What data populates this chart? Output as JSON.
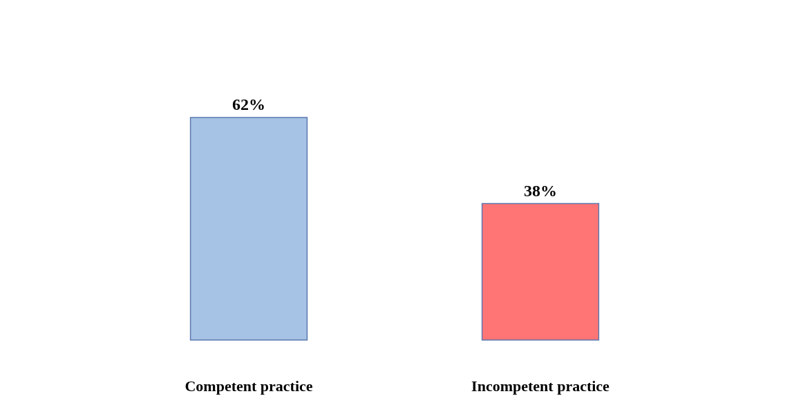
{
  "chart_data": {
    "type": "bar",
    "categories": [
      "Competent practice",
      "Incompetent practice"
    ],
    "values": [
      62,
      38
    ],
    "colors": [
      "#9dbce2",
      "#ff6666"
    ],
    "value_labels": [
      "62%",
      "38%"
    ]
  }
}
